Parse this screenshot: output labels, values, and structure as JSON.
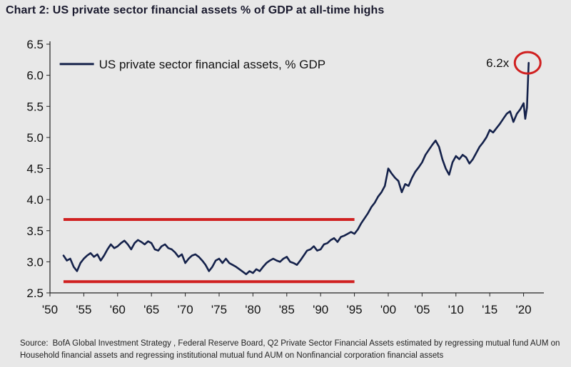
{
  "title": "Chart 2: US private sector financial assets % of GDP at all-time highs",
  "source": {
    "label": "Source:",
    "text": "BofA Global Investment Strategy , Federal Reserve Board, Q2 Private Sector Financial Assets estimated by regressing mutual fund AUM on Household financial assets and regressing institutional mutual fund AUM on Nonfinancial corporation financial assets"
  },
  "colors": {
    "line": "#14214a",
    "highlight": "#d02020",
    "axis": "#222222",
    "background": "#e8e8e8"
  },
  "chart_data": {
    "type": "line",
    "title": "Chart 2: US private sector financial assets % of GDP at all-time highs",
    "xlabel": "",
    "ylabel": "",
    "xlim": [
      1950,
      2023
    ],
    "ylim": [
      2.5,
      6.5
    ],
    "grid": false,
    "legend_position": "top-left",
    "x_ticks": [
      1950,
      1955,
      1960,
      1965,
      1970,
      1975,
      1980,
      1985,
      1990,
      1995,
      2000,
      2005,
      2010,
      2015,
      2020
    ],
    "x_tick_labels": [
      "'50",
      "'55",
      "'60",
      "'65",
      "'70",
      "'75",
      "'80",
      "'85",
      "'90",
      "'95",
      "'00",
      "'05",
      "'10",
      "'15",
      "'20"
    ],
    "y_ticks": [
      2.5,
      3.0,
      3.5,
      4.0,
      4.5,
      5.0,
      5.5,
      6.0,
      6.5
    ],
    "y_tick_labels": [
      "2.5",
      "3.0",
      "3.5",
      "4.0",
      "4.5",
      "5.0",
      "5.5",
      "6.0",
      "6.5"
    ],
    "series": [
      {
        "name": "US private sector financial assets, % GDP",
        "x": [
          1952.0,
          1952.5,
          1953.0,
          1953.5,
          1954.0,
          1954.5,
          1955.0,
          1955.5,
          1956.0,
          1956.5,
          1957.0,
          1957.5,
          1958.0,
          1958.5,
          1959.0,
          1959.5,
          1960.0,
          1960.5,
          1961.0,
          1961.5,
          1962.0,
          1962.5,
          1963.0,
          1963.5,
          1964.0,
          1964.5,
          1965.0,
          1965.5,
          1966.0,
          1966.5,
          1967.0,
          1967.5,
          1968.0,
          1968.5,
          1969.0,
          1969.5,
          1970.0,
          1970.5,
          1971.0,
          1971.5,
          1972.0,
          1972.5,
          1973.0,
          1973.5,
          1974.0,
          1974.5,
          1975.0,
          1975.5,
          1976.0,
          1976.5,
          1977.0,
          1977.5,
          1978.0,
          1978.5,
          1979.0,
          1979.5,
          1980.0,
          1980.5,
          1981.0,
          1981.5,
          1982.0,
          1982.5,
          1983.0,
          1983.5,
          1984.0,
          1984.5,
          1985.0,
          1985.5,
          1986.0,
          1986.5,
          1987.0,
          1987.5,
          1988.0,
          1988.5,
          1989.0,
          1989.5,
          1990.0,
          1990.5,
          1991.0,
          1991.5,
          1992.0,
          1992.5,
          1993.0,
          1993.5,
          1994.0,
          1994.5,
          1995.0,
          1995.5,
          1996.0,
          1996.5,
          1997.0,
          1997.5,
          1998.0,
          1998.5,
          1999.0,
          1999.5,
          2000.0,
          2000.5,
          2001.0,
          2001.5,
          2002.0,
          2002.5,
          2003.0,
          2003.5,
          2004.0,
          2004.5,
          2005.0,
          2005.5,
          2006.0,
          2006.5,
          2007.0,
          2007.5,
          2008.0,
          2008.5,
          2009.0,
          2009.5,
          2010.0,
          2010.5,
          2011.0,
          2011.5,
          2012.0,
          2012.5,
          2013.0,
          2013.5,
          2014.0,
          2014.5,
          2015.0,
          2015.5,
          2016.0,
          2016.5,
          2017.0,
          2017.5,
          2018.0,
          2018.5,
          2019.0,
          2019.5,
          2020.0,
          2020.25,
          2020.5,
          2020.75
        ],
        "values": [
          3.1,
          3.02,
          3.05,
          2.92,
          2.85,
          2.98,
          3.05,
          3.1,
          3.14,
          3.08,
          3.12,
          3.02,
          3.1,
          3.2,
          3.28,
          3.22,
          3.25,
          3.3,
          3.34,
          3.28,
          3.2,
          3.3,
          3.35,
          3.32,
          3.28,
          3.33,
          3.3,
          3.2,
          3.18,
          3.25,
          3.28,
          3.22,
          3.2,
          3.15,
          3.08,
          3.12,
          2.98,
          3.05,
          3.1,
          3.12,
          3.08,
          3.02,
          2.95,
          2.85,
          2.92,
          3.02,
          3.05,
          2.98,
          3.05,
          2.98,
          2.95,
          2.92,
          2.88,
          2.84,
          2.8,
          2.85,
          2.82,
          2.88,
          2.85,
          2.92,
          2.98,
          3.02,
          3.05,
          3.02,
          3.0,
          3.05,
          3.08,
          3.0,
          2.98,
          2.95,
          3.02,
          3.1,
          3.18,
          3.2,
          3.25,
          3.18,
          3.2,
          3.28,
          3.3,
          3.35,
          3.38,
          3.32,
          3.4,
          3.42,
          3.45,
          3.48,
          3.45,
          3.52,
          3.62,
          3.7,
          3.78,
          3.88,
          3.95,
          4.05,
          4.12,
          4.22,
          4.5,
          4.42,
          4.35,
          4.3,
          4.12,
          4.25,
          4.22,
          4.35,
          4.45,
          4.52,
          4.6,
          4.72,
          4.8,
          4.88,
          4.95,
          4.85,
          4.65,
          4.5,
          4.4,
          4.6,
          4.7,
          4.65,
          4.72,
          4.68,
          4.58,
          4.65,
          4.75,
          4.85,
          4.92,
          5.0,
          5.12,
          5.08,
          5.15,
          5.22,
          5.3,
          5.38,
          5.42,
          5.25,
          5.38,
          5.45,
          5.55,
          5.3,
          5.48,
          6.2
        ]
      }
    ],
    "annotations": [
      {
        "type": "label",
        "text": "6.2x",
        "x": 2020.6,
        "y": 6.2
      },
      {
        "type": "circle",
        "x": 2020.6,
        "y": 6.2
      },
      {
        "type": "hline",
        "y": 3.68,
        "x_range": [
          1952,
          1995
        ]
      },
      {
        "type": "hline",
        "y": 2.68,
        "x_range": [
          1952,
          1995
        ]
      }
    ]
  }
}
